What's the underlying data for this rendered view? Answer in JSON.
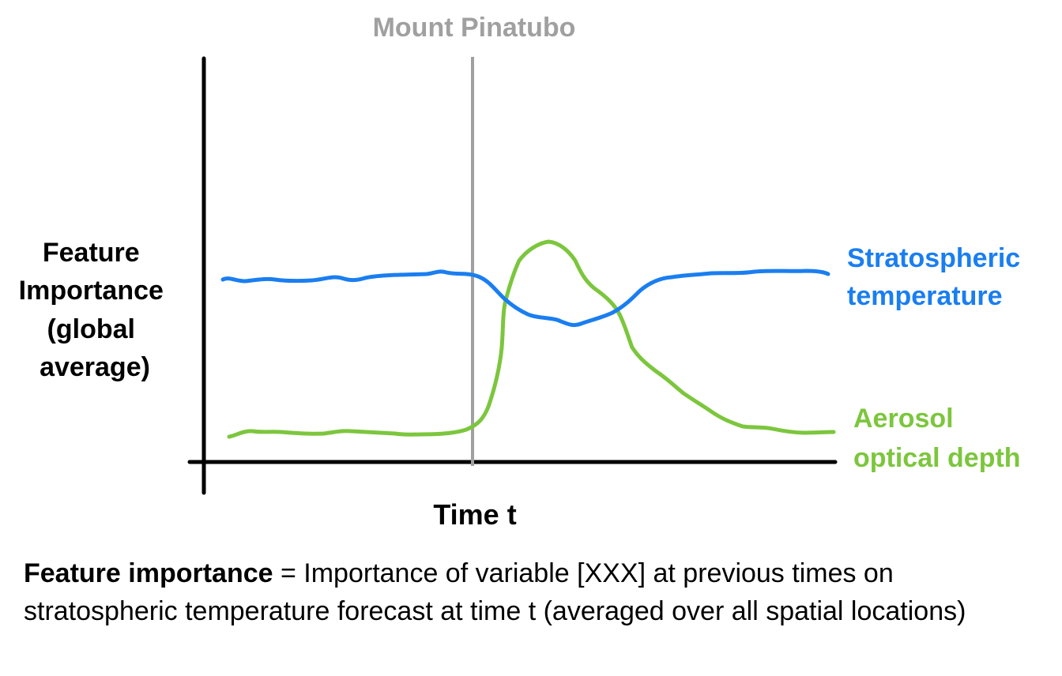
{
  "chart_data": {
    "type": "line",
    "title": "",
    "event_marker": {
      "label": "Mount Pinatubo",
      "color": "#a0a0a0"
    },
    "xlabel": "Time t",
    "ylabel_lines": [
      "Feature",
      "Importance",
      "(global",
      "average)"
    ],
    "series": [
      {
        "name_lines": [
          "Stratospheric",
          "temperature"
        ],
        "color": "#1a7ef0"
      },
      {
        "name_lines": [
          "Aerosol",
          "optical depth"
        ],
        "color": "#7cc63d"
      }
    ]
  },
  "caption": {
    "term": "Feature importance",
    "definition": " = Importance of variable [XXX] at previous times on stratospheric temperature forecast at time t (averaged over all spatial locations)"
  }
}
